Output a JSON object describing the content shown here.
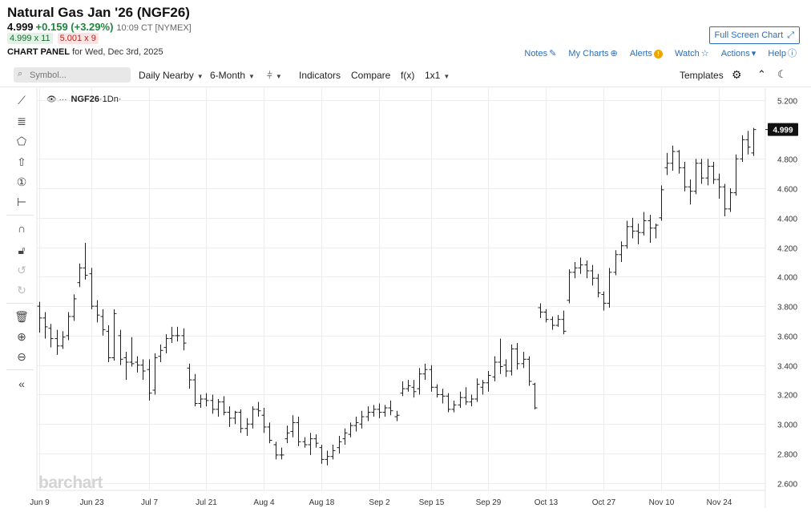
{
  "header": {
    "title": "Natural Gas Jan '26 (NGF26)",
    "last": "4.999",
    "change": "+0.159 (+3.29%)",
    "time": "10:09 CT [NYMEX]",
    "bid": "4.999 x 11",
    "ask": "5.001 x 9",
    "panel_label": "CHART PANEL",
    "panel_date": "for Wed, Dec 3rd, 2025",
    "fullscreen_label": "Full Screen Chart",
    "links": {
      "notes": "Notes",
      "my_charts": "My Charts",
      "alerts": "Alerts",
      "watch": "Watch",
      "actions": "Actions",
      "help": "Help"
    }
  },
  "toolbar": {
    "symbol_placeholder": "Symbol...",
    "aggregation": "Daily Nearby",
    "period": "6-Month",
    "indicators": "Indicators",
    "compare": "Compare",
    "fx": "f(x)",
    "layout": "1x1",
    "templates": "Templates"
  },
  "colors": {
    "accent": "#2a6ebb",
    "up": "#1a8a3a",
    "down": "#b2281e",
    "bars": "#1e1e1e"
  },
  "chart_label": {
    "symbol": "NGF26",
    "interval": "·1Dn·"
  },
  "watermark": "barchart",
  "chart_data": {
    "type": "ohlc",
    "symbol": "NGF26",
    "last_price_label": "4.999",
    "ylim": [
      2.55,
      5.28
    ],
    "y_ticks": [
      "5.200",
      "4.800",
      "4.600",
      "4.400",
      "4.200",
      "4.000",
      "3.800",
      "3.600",
      "3.400",
      "3.200",
      "3.000",
      "2.800",
      "2.600"
    ],
    "x_ticks": [
      {
        "label": "Jun 9",
        "i": 0
      },
      {
        "label": "Jun 23",
        "i": 9
      },
      {
        "label": "Jul 7",
        "i": 19
      },
      {
        "label": "Jul 21",
        "i": 29
      },
      {
        "label": "Aug 4",
        "i": 39
      },
      {
        "label": "Aug 18",
        "i": 49
      },
      {
        "label": "Sep 2",
        "i": 59
      },
      {
        "label": "Sep 15",
        "i": 68
      },
      {
        "label": "Sep 29",
        "i": 78
      },
      {
        "label": "Oct 13",
        "i": 88
      },
      {
        "label": "Oct 27",
        "i": 98
      },
      {
        "label": "Nov 10",
        "i": 108
      },
      {
        "label": "Nov 24",
        "i": 118
      }
    ],
    "bars": [
      {
        "o": 3.8,
        "h": 3.83,
        "l": 3.62,
        "c": 3.72
      },
      {
        "o": 3.72,
        "h": 3.76,
        "l": 3.58,
        "c": 3.66
      },
      {
        "o": 3.65,
        "h": 3.68,
        "l": 3.52,
        "c": 3.58
      },
      {
        "o": 3.58,
        "h": 3.64,
        "l": 3.47,
        "c": 3.53
      },
      {
        "o": 3.53,
        "h": 3.63,
        "l": 3.51,
        "c": 3.59
      },
      {
        "o": 3.6,
        "h": 3.76,
        "l": 3.57,
        "c": 3.73
      },
      {
        "o": 3.73,
        "h": 3.88,
        "l": 3.7,
        "c": 3.85
      },
      {
        "o": 3.96,
        "h": 4.09,
        "l": 3.93,
        "c": 4.06
      },
      {
        "o": 4.06,
        "h": 4.23,
        "l": 3.98,
        "c": 4.01
      },
      {
        "o": 4.02,
        "h": 4.06,
        "l": 3.78,
        "c": 3.8
      },
      {
        "o": 3.8,
        "h": 3.84,
        "l": 3.69,
        "c": 3.74
      },
      {
        "o": 3.73,
        "h": 3.78,
        "l": 3.6,
        "c": 3.64
      },
      {
        "o": 3.63,
        "h": 3.67,
        "l": 3.42,
        "c": 3.45
      },
      {
        "o": 3.45,
        "h": 3.78,
        "l": 3.43,
        "c": 3.75
      },
      {
        "o": 3.6,
        "h": 3.64,
        "l": 3.4,
        "c": 3.44
      },
      {
        "o": 3.45,
        "h": 3.49,
        "l": 3.3,
        "c": 3.42
      },
      {
        "o": 3.42,
        "h": 3.59,
        "l": 3.39,
        "c": 3.41
      },
      {
        "o": 3.42,
        "h": 3.46,
        "l": 3.35,
        "c": 3.4
      },
      {
        "o": 3.4,
        "h": 3.44,
        "l": 3.3,
        "c": 3.36
      },
      {
        "o": 3.37,
        "h": 3.44,
        "l": 3.16,
        "c": 3.21
      },
      {
        "o": 3.23,
        "h": 3.48,
        "l": 3.2,
        "c": 3.45
      },
      {
        "o": 3.46,
        "h": 3.54,
        "l": 3.42,
        "c": 3.5
      },
      {
        "o": 3.52,
        "h": 3.61,
        "l": 3.48,
        "c": 3.58
      },
      {
        "o": 3.58,
        "h": 3.66,
        "l": 3.55,
        "c": 3.6
      },
      {
        "o": 3.6,
        "h": 3.66,
        "l": 3.56,
        "c": 3.6
      },
      {
        "o": 3.6,
        "h": 3.65,
        "l": 3.5,
        "c": 3.55
      },
      {
        "o": 3.38,
        "h": 3.41,
        "l": 3.24,
        "c": 3.3
      },
      {
        "o": 3.3,
        "h": 3.34,
        "l": 3.12,
        "c": 3.14
      },
      {
        "o": 3.14,
        "h": 3.2,
        "l": 3.11,
        "c": 3.17
      },
      {
        "o": 3.17,
        "h": 3.21,
        "l": 3.12,
        "c": 3.16
      },
      {
        "o": 3.16,
        "h": 3.2,
        "l": 3.07,
        "c": 3.1
      },
      {
        "o": 3.1,
        "h": 3.17,
        "l": 3.05,
        "c": 3.15
      },
      {
        "o": 3.15,
        "h": 3.19,
        "l": 3.06,
        "c": 3.08
      },
      {
        "o": 3.08,
        "h": 3.12,
        "l": 2.98,
        "c": 3.04
      },
      {
        "o": 3.04,
        "h": 3.09,
        "l": 3.0,
        "c": 3.08
      },
      {
        "o": 3.08,
        "h": 3.1,
        "l": 2.94,
        "c": 2.97
      },
      {
        "o": 2.97,
        "h": 3.04,
        "l": 2.92,
        "c": 3.0
      },
      {
        "o": 3.0,
        "h": 3.12,
        "l": 2.97,
        "c": 3.1
      },
      {
        "o": 3.1,
        "h": 3.15,
        "l": 3.05,
        "c": 3.09
      },
      {
        "o": 3.06,
        "h": 3.11,
        "l": 2.94,
        "c": 2.98
      },
      {
        "o": 2.98,
        "h": 3.01,
        "l": 2.87,
        "c": 2.89
      },
      {
        "o": 2.86,
        "h": 2.88,
        "l": 2.76,
        "c": 2.79
      },
      {
        "o": 2.79,
        "h": 2.84,
        "l": 2.76,
        "c": 2.79
      },
      {
        "o": 2.9,
        "h": 2.99,
        "l": 2.87,
        "c": 2.94
      },
      {
        "o": 2.95,
        "h": 3.06,
        "l": 2.91,
        "c": 3.01
      },
      {
        "o": 3.01,
        "h": 3.05,
        "l": 2.85,
        "c": 2.88
      },
      {
        "o": 2.88,
        "h": 2.91,
        "l": 2.84,
        "c": 2.86
      },
      {
        "o": 2.86,
        "h": 2.94,
        "l": 2.79,
        "c": 2.9
      },
      {
        "o": 2.9,
        "h": 2.93,
        "l": 2.84,
        "c": 2.87
      },
      {
        "o": 2.84,
        "h": 2.86,
        "l": 2.73,
        "c": 2.76
      },
      {
        "o": 2.76,
        "h": 2.82,
        "l": 2.72,
        "c": 2.78
      },
      {
        "o": 2.78,
        "h": 2.86,
        "l": 2.76,
        "c": 2.82
      },
      {
        "o": 2.84,
        "h": 2.92,
        "l": 2.8,
        "c": 2.88
      },
      {
        "o": 2.9,
        "h": 2.97,
        "l": 2.86,
        "c": 2.94
      },
      {
        "o": 2.93,
        "h": 3.01,
        "l": 2.91,
        "c": 2.99
      },
      {
        "o": 2.99,
        "h": 3.05,
        "l": 2.95,
        "c": 3.01
      },
      {
        "o": 3.0,
        "h": 3.09,
        "l": 2.97,
        "c": 3.05
      },
      {
        "o": 3.05,
        "h": 3.12,
        "l": 3.02,
        "c": 3.08
      },
      {
        "o": 3.08,
        "h": 3.13,
        "l": 3.05,
        "c": 3.1
      },
      {
        "o": 3.1,
        "h": 3.14,
        "l": 3.04,
        "c": 3.08
      },
      {
        "o": 3.08,
        "h": 3.13,
        "l": 3.05,
        "c": 3.11
      },
      {
        "o": 3.11,
        "h": 3.16,
        "l": 3.06,
        "c": 3.09
      },
      {
        "o": 3.05,
        "h": 3.09,
        "l": 3.02,
        "c": 3.06
      },
      {
        "o": 3.21,
        "h": 3.29,
        "l": 3.19,
        "c": 3.24
      },
      {
        "o": 3.24,
        "h": 3.3,
        "l": 3.22,
        "c": 3.26
      },
      {
        "o": 3.25,
        "h": 3.3,
        "l": 3.18,
        "c": 3.22
      },
      {
        "o": 3.24,
        "h": 3.38,
        "l": 3.2,
        "c": 3.34
      },
      {
        "o": 3.34,
        "h": 3.41,
        "l": 3.3,
        "c": 3.37
      },
      {
        "o": 3.37,
        "h": 3.4,
        "l": 3.22,
        "c": 3.25
      },
      {
        "o": 3.25,
        "h": 3.27,
        "l": 3.18,
        "c": 3.2
      },
      {
        "o": 3.2,
        "h": 3.24,
        "l": 3.14,
        "c": 3.19
      },
      {
        "o": 3.19,
        "h": 3.21,
        "l": 3.08,
        "c": 3.1
      },
      {
        "o": 3.1,
        "h": 3.16,
        "l": 3.08,
        "c": 3.13
      },
      {
        "o": 3.13,
        "h": 3.22,
        "l": 3.11,
        "c": 3.18
      },
      {
        "o": 3.18,
        "h": 3.25,
        "l": 3.13,
        "c": 3.15
      },
      {
        "o": 3.15,
        "h": 3.2,
        "l": 3.12,
        "c": 3.17
      },
      {
        "o": 3.17,
        "h": 3.31,
        "l": 3.15,
        "c": 3.27
      },
      {
        "o": 3.25,
        "h": 3.3,
        "l": 3.2,
        "c": 3.28
      },
      {
        "o": 3.28,
        "h": 3.36,
        "l": 3.22,
        "c": 3.33
      },
      {
        "o": 3.32,
        "h": 3.46,
        "l": 3.29,
        "c": 3.42
      },
      {
        "o": 3.42,
        "h": 3.58,
        "l": 3.34,
        "c": 3.39
      },
      {
        "o": 3.4,
        "h": 3.44,
        "l": 3.32,
        "c": 3.36
      },
      {
        "o": 3.36,
        "h": 3.54,
        "l": 3.33,
        "c": 3.51
      },
      {
        "o": 3.51,
        "h": 3.55,
        "l": 3.37,
        "c": 3.41
      },
      {
        "o": 3.41,
        "h": 3.49,
        "l": 3.38,
        "c": 3.44
      },
      {
        "o": 3.44,
        "h": 3.46,
        "l": 3.26,
        "c": 3.29
      },
      {
        "o": 3.27,
        "h": 3.28,
        "l": 3.1,
        "c": 3.11
      },
      {
        "o": 3.79,
        "h": 3.82,
        "l": 3.72,
        "c": 3.76
      },
      {
        "o": 3.76,
        "h": 3.78,
        "l": 3.69,
        "c": 3.71
      },
      {
        "o": 3.71,
        "h": 3.73,
        "l": 3.64,
        "c": 3.67
      },
      {
        "o": 3.67,
        "h": 3.74,
        "l": 3.66,
        "c": 3.71
      },
      {
        "o": 3.71,
        "h": 3.77,
        "l": 3.61,
        "c": 3.63
      },
      {
        "o": 3.84,
        "h": 4.05,
        "l": 3.82,
        "c": 4.03
      },
      {
        "o": 4.03,
        "h": 4.1,
        "l": 3.99,
        "c": 4.06
      },
      {
        "o": 4.06,
        "h": 4.13,
        "l": 4.02,
        "c": 4.08
      },
      {
        "o": 4.08,
        "h": 4.11,
        "l": 3.99,
        "c": 4.04
      },
      {
        "o": 4.04,
        "h": 4.08,
        "l": 3.94,
        "c": 3.99
      },
      {
        "o": 3.99,
        "h": 4.02,
        "l": 3.86,
        "c": 3.89
      },
      {
        "o": 3.88,
        "h": 3.9,
        "l": 3.77,
        "c": 3.82
      },
      {
        "o": 3.82,
        "h": 4.06,
        "l": 3.79,
        "c": 4.03
      },
      {
        "o": 4.03,
        "h": 4.18,
        "l": 4.01,
        "c": 4.15
      },
      {
        "o": 4.15,
        "h": 4.24,
        "l": 4.1,
        "c": 4.21
      },
      {
        "o": 4.21,
        "h": 4.38,
        "l": 4.19,
        "c": 4.34
      },
      {
        "o": 4.34,
        "h": 4.4,
        "l": 4.26,
        "c": 4.31
      },
      {
        "o": 4.31,
        "h": 4.36,
        "l": 4.22,
        "c": 4.3
      },
      {
        "o": 4.3,
        "h": 4.44,
        "l": 4.28,
        "c": 4.38
      },
      {
        "o": 4.38,
        "h": 4.42,
        "l": 4.23,
        "c": 4.33
      },
      {
        "o": 4.33,
        "h": 4.36,
        "l": 4.26,
        "c": 4.35
      },
      {
        "o": 4.4,
        "h": 4.62,
        "l": 4.38,
        "c": 4.59
      },
      {
        "o": 4.74,
        "h": 4.84,
        "l": 4.69,
        "c": 4.77
      },
      {
        "o": 4.77,
        "h": 4.89,
        "l": 4.72,
        "c": 4.85
      },
      {
        "o": 4.85,
        "h": 4.86,
        "l": 4.7,
        "c": 4.74
      },
      {
        "o": 4.74,
        "h": 4.78,
        "l": 4.58,
        "c": 4.61
      },
      {
        "o": 4.61,
        "h": 4.66,
        "l": 4.49,
        "c": 4.58
      },
      {
        "o": 4.58,
        "h": 4.8,
        "l": 4.56,
        "c": 4.77
      },
      {
        "o": 4.77,
        "h": 4.8,
        "l": 4.63,
        "c": 4.67
      },
      {
        "o": 4.67,
        "h": 4.8,
        "l": 4.62,
        "c": 4.75
      },
      {
        "o": 4.75,
        "h": 4.78,
        "l": 4.63,
        "c": 4.66
      },
      {
        "o": 4.66,
        "h": 4.7,
        "l": 4.53,
        "c": 4.61
      },
      {
        "o": 4.61,
        "h": 4.63,
        "l": 4.41,
        "c": 4.46
      },
      {
        "o": 4.46,
        "h": 4.6,
        "l": 4.44,
        "c": 4.57
      },
      {
        "o": 4.57,
        "h": 4.83,
        "l": 4.55,
        "c": 4.8
      },
      {
        "o": 4.8,
        "h": 4.96,
        "l": 4.78,
        "c": 4.93
      },
      {
        "o": 4.93,
        "h": 4.99,
        "l": 4.83,
        "c": 4.88
      },
      {
        "o": 4.84,
        "h": 5.01,
        "l": 4.82,
        "c": 4.999
      }
    ]
  }
}
